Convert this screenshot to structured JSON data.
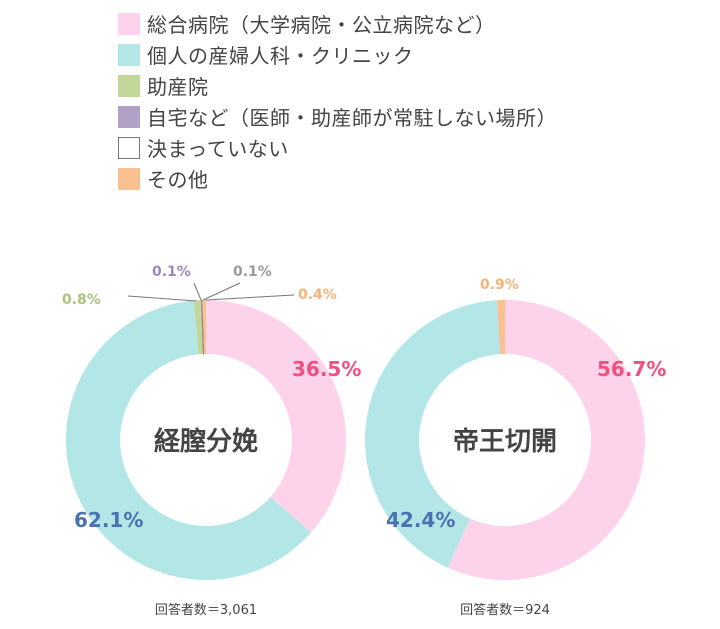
{
  "colors": {
    "general_hospital": "#fdd3ec",
    "clinic": "#b3e6e6",
    "midwifery": "#c4d79b",
    "home": "#b2a1c7",
    "undecided": "#ffffff",
    "other": "#fac090",
    "label_pink": "#f0507d",
    "label_blue": "#4b72b0",
    "label_green": "#a8c47c",
    "label_purple": "#9b86c4",
    "label_gray": "#999999",
    "label_orange": "#f5b27a"
  },
  "legend": [
    {
      "key": "general_hospital",
      "label": "総合病院（大学病院・公立病院など）"
    },
    {
      "key": "clinic",
      "label": "個人の産婦人科・クリニック"
    },
    {
      "key": "midwifery",
      "label": "助産院"
    },
    {
      "key": "home",
      "label": "自宅など（医師・助産師が常駐しない場所）"
    },
    {
      "key": "undecided",
      "label": "決まっていない"
    },
    {
      "key": "other",
      "label": "その他"
    }
  ],
  "chart_data": [
    {
      "type": "pie",
      "title": "経膣分娩",
      "note": "回答者数＝3,061",
      "categories": [
        "総合病院（大学病院・公立病院など）",
        "個人の産婦人科・クリニック",
        "助産院",
        "自宅など（医師・助産師が常駐しない場所）",
        "決まっていない",
        "その他"
      ],
      "values": [
        36.5,
        62.1,
        0.8,
        0.1,
        0.1,
        0.4
      ],
      "labels": [
        "36.5%",
        "62.1%",
        "0.8%",
        "0.1%",
        "0.1%",
        "0.4%"
      ]
    },
    {
      "type": "pie",
      "title": "帝王切開",
      "note": "回答者数＝924",
      "categories": [
        "総合病院（大学病院・公立病院など）",
        "個人の産婦人科・クリニック",
        "その他"
      ],
      "values": [
        56.7,
        42.4,
        0.9
      ],
      "labels": [
        "56.7%",
        "42.4%",
        "0.9%"
      ]
    }
  ]
}
